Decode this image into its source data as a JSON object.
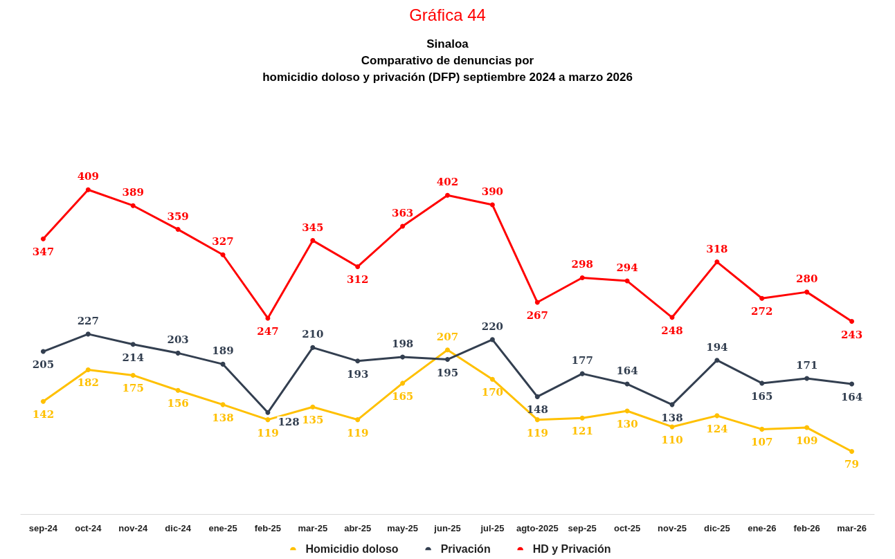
{
  "chart_data": {
    "type": "line",
    "title": "Gráfica 44",
    "subtitle": "Sinaloa\nComparativo de denuncias por\nhomicidio doloso y privación (DFP) septiembre 2024 a marzo 2026",
    "categories": [
      "sep-24",
      "oct-24",
      "nov-24",
      "dic-24",
      "ene-25",
      "feb-25",
      "mar-25",
      "abr-25",
      "may-25",
      "jun-25",
      "jul-25",
      "agto-2025",
      "sep-25",
      "oct-25",
      "nov-25",
      "dic-25",
      "ene-26",
      "feb-26",
      "mar-26"
    ],
    "series": [
      {
        "name": "Homicidio doloso",
        "color": "#ffc000",
        "values": [
          142,
          182,
          175,
          156,
          138,
          119,
          135,
          119,
          165,
          207,
          170,
          119,
          121,
          130,
          110,
          124,
          107,
          109,
          79
        ]
      },
      {
        "name": "Privación",
        "color": "#333f50",
        "values": [
          205,
          227,
          214,
          203,
          189,
          128,
          210,
          193,
          198,
          195,
          220,
          148,
          177,
          164,
          138,
          194,
          165,
          171,
          164
        ]
      },
      {
        "name": "HD y Privación",
        "color": "#ff0000",
        "values": [
          347,
          409,
          389,
          359,
          327,
          247,
          345,
          312,
          363,
          402,
          390,
          267,
          298,
          294,
          248,
          318,
          272,
          280,
          243
        ]
      }
    ],
    "data_labels": true,
    "grid": false,
    "legend": "bottom",
    "marker": "circle",
    "line_style": "solid"
  }
}
